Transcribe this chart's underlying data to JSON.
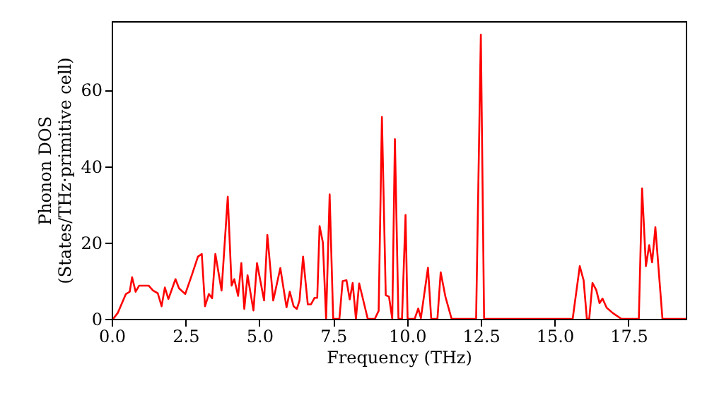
{
  "chart_data": {
    "type": "line",
    "xlabel": "Frequency (THz)",
    "ylabel": "Phonon DOS\n(States/THz·primitive cell)",
    "x": [
      0.05,
      0.21,
      0.48,
      0.61,
      0.69,
      0.81,
      0.93,
      1.25,
      1.4,
      1.56,
      1.69,
      1.8,
      1.92,
      2.16,
      2.28,
      2.49,
      2.71,
      2.92,
      3.05,
      3.16,
      3.29,
      3.4,
      3.51,
      3.72,
      3.93,
      4.06,
      4.15,
      4.28,
      4.39,
      4.49,
      4.6,
      4.8,
      4.92,
      5.16,
      5.27,
      5.47,
      5.71,
      5.92,
      6.03,
      6.16,
      6.27,
      6.36,
      6.48,
      6.64,
      6.75,
      6.87,
      6.96,
      7.04,
      7.15,
      7.26,
      7.38,
      7.5,
      7.71,
      7.82,
      7.95,
      8.06,
      8.16,
      8.27,
      8.38,
      8.67,
      8.91,
      9.04,
      9.15,
      9.28,
      9.39,
      9.5,
      9.59,
      9.71,
      9.83,
      9.95,
      10.02,
      10.26,
      10.38,
      10.47,
      10.71,
      10.82,
      11.03,
      11.14,
      11.3,
      11.51,
      12.34,
      12.5,
      12.61,
      15.61,
      15.85,
      15.98,
      16.09,
      16.17,
      16.28,
      16.41,
      16.52,
      16.62,
      16.76,
      16.97,
      17.26,
      17.85,
      17.96,
      18.09,
      18.2,
      18.3,
      18.41,
      18.65,
      19.44
    ],
    "series": [
      {
        "color": "#ff0000",
        "values": [
          0,
          1.6,
          6.5,
          7.1,
          10.9,
          7.1,
          8.7,
          8.7,
          7.4,
          6.7,
          3.3,
          8.2,
          5.2,
          10.4,
          8,
          6.5,
          11.4,
          16.3,
          17,
          3.3,
          6.5,
          5.4,
          17,
          7.4,
          32,
          8.7,
          10.4,
          6,
          14.6,
          2.6,
          11.4,
          2.2,
          14.6,
          4.8,
          22,
          4.8,
          13.3,
          3,
          7.1,
          3.3,
          2.6,
          4.8,
          16.3,
          3.8,
          3.8,
          5.5,
          5.5,
          24.3,
          20,
          0,
          32.6,
          0,
          0,
          9.9,
          10.1,
          5.1,
          9.4,
          0,
          9.3,
          0,
          0,
          2.1,
          52.9,
          6.2,
          5.8,
          0,
          47.1,
          0,
          0,
          27.2,
          0,
          0,
          2.7,
          0.2,
          13.4,
          0,
          0,
          12.2,
          5.8,
          0,
          0,
          74.5,
          0,
          0,
          13.8,
          10.1,
          0,
          0,
          9.4,
          7.5,
          4.1,
          5.3,
          2.9,
          1.5,
          0,
          0,
          34.2,
          13.8,
          19.3,
          14.8,
          24,
          0,
          0
        ]
      }
    ],
    "xlim": [
      0,
      19.44
    ],
    "ylim": [
      0,
      78
    ],
    "xticks": [
      {
        "value": 0,
        "label": "0.0"
      },
      {
        "value": 2.5,
        "label": "2.5"
      },
      {
        "value": 5,
        "label": "5.0"
      },
      {
        "value": 7.5,
        "label": "7.5"
      },
      {
        "value": 10,
        "label": "10.0"
      },
      {
        "value": 12.5,
        "label": "12.5"
      },
      {
        "value": 15,
        "label": "15.0"
      },
      {
        "value": 17.5,
        "label": "17.5"
      }
    ],
    "yticks": [
      0,
      20,
      40,
      60
    ],
    "grid": false,
    "marker": "none",
    "line_style": "solid"
  }
}
